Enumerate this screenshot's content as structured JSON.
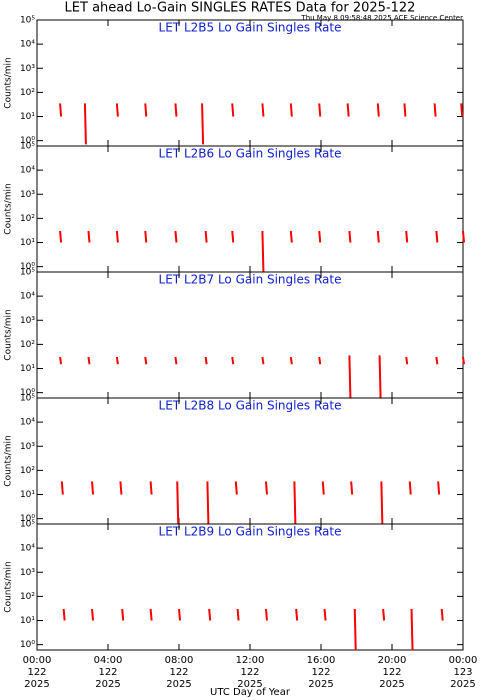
{
  "title": "LET ahead Lo-Gain SINGLES RATES Data for 2025-122",
  "timestamp": "Thu May  8 09:58:48 2025 ACE Science Center",
  "chart_data": [
    {
      "type": "spike",
      "title": "LET L2B5 Lo Gain Singles Rate",
      "y_label": "Counts/min",
      "log_y": true,
      "color": "#ff0000",
      "x": [
        1.3,
        2.7,
        4.5,
        6.1,
        7.8,
        9.3,
        11.0,
        12.7,
        14.3,
        15.9,
        17.5,
        19.2,
        20.7,
        22.4,
        23.9
      ],
      "values": [
        35,
        35,
        35,
        35,
        35,
        35,
        35,
        35,
        35,
        35,
        35,
        35,
        35,
        35,
        35
      ],
      "lows": [
        10,
        0.7,
        10,
        10,
        10,
        0.7,
        10,
        10,
        10,
        10,
        10,
        10,
        10,
        10,
        10
      ],
      "xlim": [
        0,
        24
      ],
      "xticks": [
        0,
        4,
        8,
        12,
        16,
        20,
        24
      ],
      "ylim": [
        0.6,
        100000
      ],
      "yticks": [
        {
          "value": 1,
          "label": "10⁰"
        },
        {
          "value": 10,
          "label": "10¹"
        },
        {
          "value": 100,
          "label": "10²"
        },
        {
          "value": 1000,
          "label": "10³"
        },
        {
          "value": 10000,
          "label": "10⁴"
        },
        {
          "value": 100000,
          "label": "10⁵"
        }
      ]
    },
    {
      "type": "spike",
      "title": "LET L2B6 Lo Gain Singles Rate",
      "y_label": "Counts/min",
      "log_y": true,
      "color": "#ff0000",
      "x": [
        1.3,
        2.9,
        4.5,
        6.1,
        7.8,
        9.5,
        11.0,
        12.7,
        14.3,
        15.9,
        17.6,
        19.2,
        20.8,
        22.5,
        24.0
      ],
      "values": [
        30,
        30,
        30,
        30,
        30,
        30,
        30,
        30,
        30,
        30,
        30,
        30,
        30,
        30,
        30
      ],
      "lows": [
        10,
        10,
        10,
        10,
        10,
        10,
        10,
        0.6,
        10,
        10,
        10,
        10,
        10,
        10,
        10
      ],
      "xlim": [
        0,
        24
      ],
      "xticks": [
        0,
        4,
        8,
        12,
        16,
        20,
        24
      ],
      "ylim": [
        0.6,
        100000
      ],
      "yticks": [
        {
          "value": 1,
          "label": "10⁰"
        },
        {
          "value": 10,
          "label": "10¹"
        },
        {
          "value": 100,
          "label": "10²"
        },
        {
          "value": 1000,
          "label": "10³"
        },
        {
          "value": 10000,
          "label": "10⁴"
        },
        {
          "value": 100000,
          "label": "10⁵"
        }
      ]
    },
    {
      "type": "spike",
      "title": "LET L2B7 Lo Gain Singles Rate",
      "y_label": "Counts/min",
      "log_y": true,
      "color": "#ff0000",
      "x": [
        1.3,
        2.9,
        4.5,
        6.1,
        7.8,
        9.5,
        11.0,
        12.7,
        14.3,
        15.9,
        17.6,
        19.3,
        20.8,
        22.5,
        24.0
      ],
      "values": [
        30,
        30,
        30,
        30,
        30,
        30,
        30,
        30,
        30,
        30,
        35,
        35,
        30,
        30,
        30
      ],
      "lows": [
        15,
        15,
        15,
        15,
        15,
        15,
        15,
        15,
        15,
        15,
        0.6,
        0.6,
        15,
        15,
        15
      ],
      "xlim": [
        0,
        24
      ],
      "xticks": [
        0,
        4,
        8,
        12,
        16,
        20,
        24
      ],
      "ylim": [
        0.6,
        100000
      ],
      "yticks": [
        {
          "value": 1,
          "label": "10⁰"
        },
        {
          "value": 10,
          "label": "10¹"
        },
        {
          "value": 100,
          "label": "10²"
        },
        {
          "value": 1000,
          "label": "10³"
        },
        {
          "value": 10000,
          "label": "10⁴"
        },
        {
          "value": 100000,
          "label": "10⁵"
        }
      ]
    },
    {
      "type": "spike",
      "title": "LET L2B8 Lo Gain Singles Rate",
      "y_label": "Counts/min",
      "log_y": true,
      "color": "#ff0000",
      "x": [
        1.4,
        3.1,
        4.7,
        6.4,
        7.9,
        9.6,
        11.2,
        12.9,
        14.5,
        16.1,
        17.7,
        19.4,
        21.0,
        22.6
      ],
      "values": [
        35,
        35,
        35,
        35,
        35,
        35,
        35,
        35,
        35,
        35,
        35,
        35,
        35,
        35
      ],
      "lows": [
        10,
        10,
        10,
        10,
        0.6,
        0.6,
        10,
        10,
        0.6,
        10,
        10,
        0.6,
        10,
        10
      ],
      "xlim": [
        0,
        24
      ],
      "xticks": [
        0,
        4,
        8,
        12,
        16,
        20,
        24
      ],
      "ylim": [
        0.6,
        100000
      ],
      "yticks": [
        {
          "value": 1,
          "label": "10⁰"
        },
        {
          "value": 10,
          "label": "10¹"
        },
        {
          "value": 100,
          "label": "10²"
        },
        {
          "value": 1000,
          "label": "10³"
        },
        {
          "value": 10000,
          "label": "10⁴"
        },
        {
          "value": 100000,
          "label": "10⁵"
        }
      ]
    },
    {
      "type": "spike",
      "title": "LET L2B9 Lo Gain Singles Rate",
      "y_label": "Counts/min",
      "log_y": true,
      "color": "#ff0000",
      "x": [
        1.5,
        3.1,
        4.8,
        6.4,
        8.0,
        9.7,
        11.3,
        12.9,
        14.6,
        16.2,
        17.9,
        19.5,
        21.1,
        22.8
      ],
      "values": [
        30,
        30,
        30,
        30,
        30,
        30,
        30,
        30,
        30,
        30,
        30,
        30,
        30,
        30
      ],
      "lows": [
        10,
        10,
        10,
        10,
        10,
        10,
        10,
        10,
        10,
        10,
        0.6,
        10,
        0.6,
        10
      ],
      "xlim": [
        0,
        24
      ],
      "xticks": [
        {
          "value": 0,
          "label": "00:00\n122\n2025"
        },
        {
          "value": 4,
          "label": "04:00\n122\n2025"
        },
        {
          "value": 8,
          "label": "08:00\n122\n2025"
        },
        {
          "value": 12,
          "label": "12:00\n122\n2025"
        },
        {
          "value": 16,
          "label": "16:00\n122\n2025"
        },
        {
          "value": 20,
          "label": "20:00\n122\n2025"
        },
        {
          "value": 24,
          "label": "00:00\n123\n2025"
        }
      ],
      "x_label": "UTC Day of Year",
      "ylim": [
        0.6,
        100000
      ],
      "yticks": [
        {
          "value": 1,
          "label": "10⁰"
        },
        {
          "value": 10,
          "label": "10¹"
        },
        {
          "value": 100,
          "label": "10²"
        },
        {
          "value": 1000,
          "label": "10³"
        },
        {
          "value": 10000,
          "label": "10⁴"
        },
        {
          "value": 100000,
          "label": "10⁵"
        }
      ]
    }
  ]
}
